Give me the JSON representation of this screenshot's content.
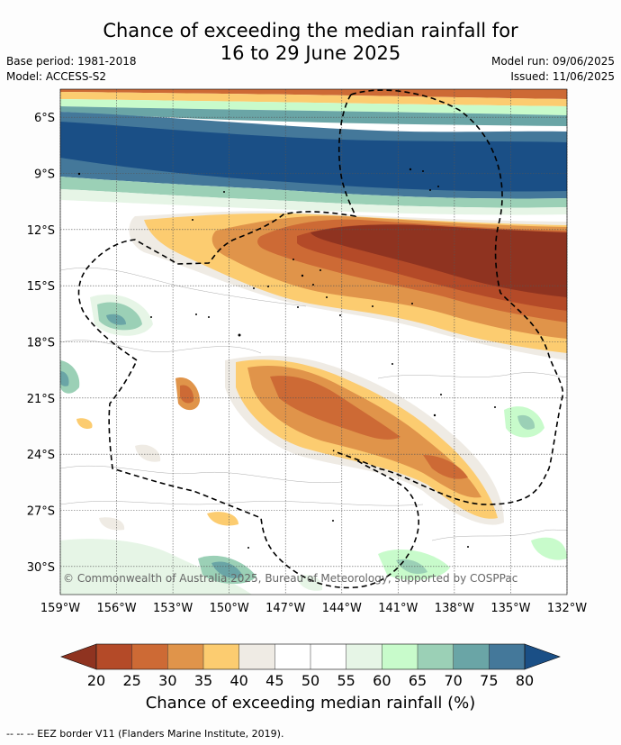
{
  "title": {
    "line1": "Chance of exceeding the median rainfall for",
    "line2": "16 to 29 June 2025"
  },
  "meta": {
    "base_period": "Base period: 1981-2018",
    "model": "Model: ACCESS-S2",
    "model_run": "Model run: 09/06/2025",
    "issued": "Issued: 11/06/2025"
  },
  "map": {
    "lat_ticks": [
      "6°S",
      "9°S",
      "12°S",
      "15°S",
      "18°S",
      "21°S",
      "24°S",
      "27°S",
      "30°S"
    ],
    "lon_ticks": [
      "159°W",
      "156°W",
      "153°W",
      "150°W",
      "147°W",
      "144°W",
      "141°W",
      "138°W",
      "135°W",
      "132°W"
    ],
    "lat_values": [
      -6,
      -9,
      -12,
      -15,
      -18,
      -21,
      -24,
      -27,
      -30
    ],
    "lon_values": [
      -159,
      -156,
      -153,
      -150,
      -147,
      -144,
      -141,
      -138,
      -135,
      -132
    ],
    "extent": {
      "lon_min": -159,
      "lon_max": -132,
      "lat_min": -31.5,
      "lat_max": -4.5
    },
    "copyright": "© Commonwealth of Australia 2025, Bureau of Meteorology, supported by COSPPac"
  },
  "colorbar": {
    "labels": [
      "20",
      "25",
      "30",
      "35",
      "40",
      "45",
      "50",
      "55",
      "60",
      "65",
      "70",
      "75",
      "80"
    ],
    "colors": [
      "#8f3320",
      "#b44a28",
      "#cd6a35",
      "#e0944a",
      "#fccc70",
      "#efebe4",
      "#ffffff",
      "#ffffff",
      "#e6f5e6",
      "#c8fbcb",
      "#9bd0b6",
      "#6aa5a6",
      "#44789a",
      "#1a4f86"
    ],
    "title": "Chance of exceeding median rainfall (%)"
  },
  "footnote": "--  --  -- EEZ border V11 (Flanders Marine Institute, 2019)."
}
